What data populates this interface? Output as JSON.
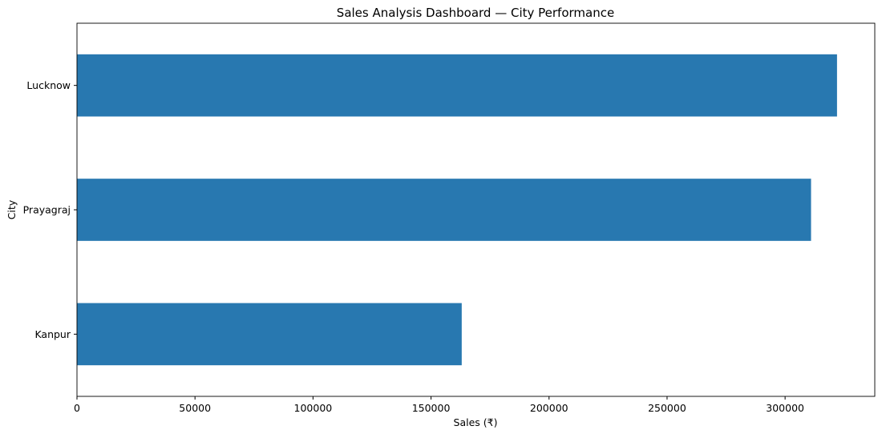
{
  "chart_data": {
    "type": "bar",
    "orientation": "horizontal",
    "title": "Sales Analysis Dashboard — City Performance",
    "xlabel": "Sales (₹)",
    "ylabel": "City",
    "categories": [
      "Lucknow",
      "Prayagraj",
      "Kanpur"
    ],
    "values": [
      322000,
      311000,
      163000
    ],
    "xlim": [
      0,
      338000
    ],
    "xticks": [
      0,
      50000,
      100000,
      150000,
      200000,
      250000,
      300000
    ],
    "xtick_labels": [
      "0",
      "50000",
      "100000",
      "150000",
      "200000",
      "250000",
      "300000"
    ],
    "grid": false,
    "legend": "none",
    "bar_color": "#2878b0"
  }
}
